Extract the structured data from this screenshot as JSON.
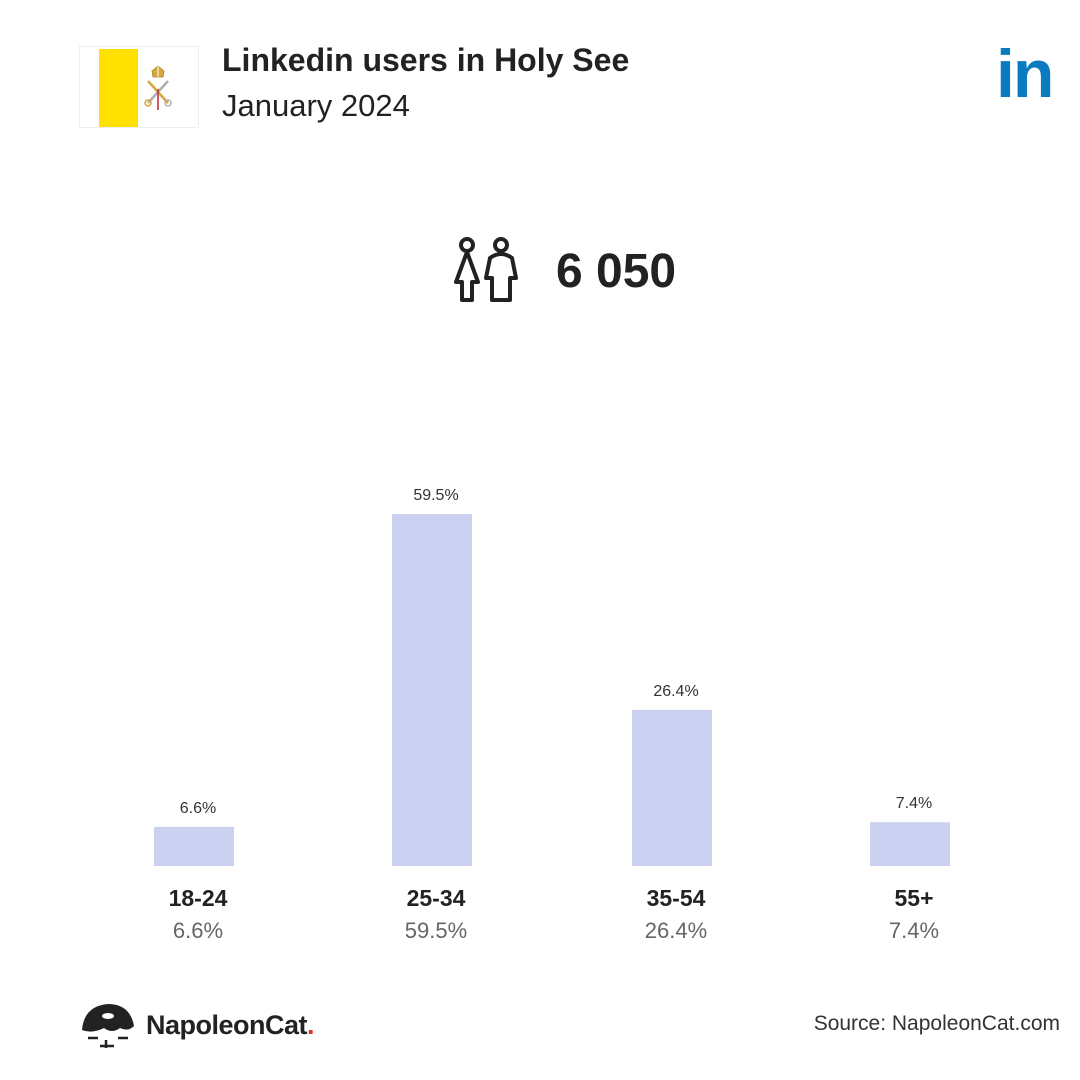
{
  "header": {
    "title": "Linkedin users in Holy See",
    "subtitle": "January 2024",
    "logo_text": "in"
  },
  "total": {
    "value": "6 050",
    "icon": "users-icon"
  },
  "chart_data": {
    "type": "bar",
    "categories": [
      "18-24",
      "25-34",
      "35-54",
      "55+"
    ],
    "values": [
      6.6,
      59.5,
      26.4,
      7.4
    ],
    "value_labels": [
      "6.6%",
      "59.5%",
      "26.4%",
      "7.4%"
    ],
    "ylim": [
      0,
      59.5
    ],
    "grid": false,
    "bar_color": "#cad1f0"
  },
  "footer": {
    "brand": "NapoleonCat",
    "brand_dot": ".",
    "source": "Source: NapoleonCat.com"
  },
  "colors": {
    "linkedin": "#0a7bbf",
    "flag_yellow": "#ffe000",
    "text": "#222222"
  }
}
